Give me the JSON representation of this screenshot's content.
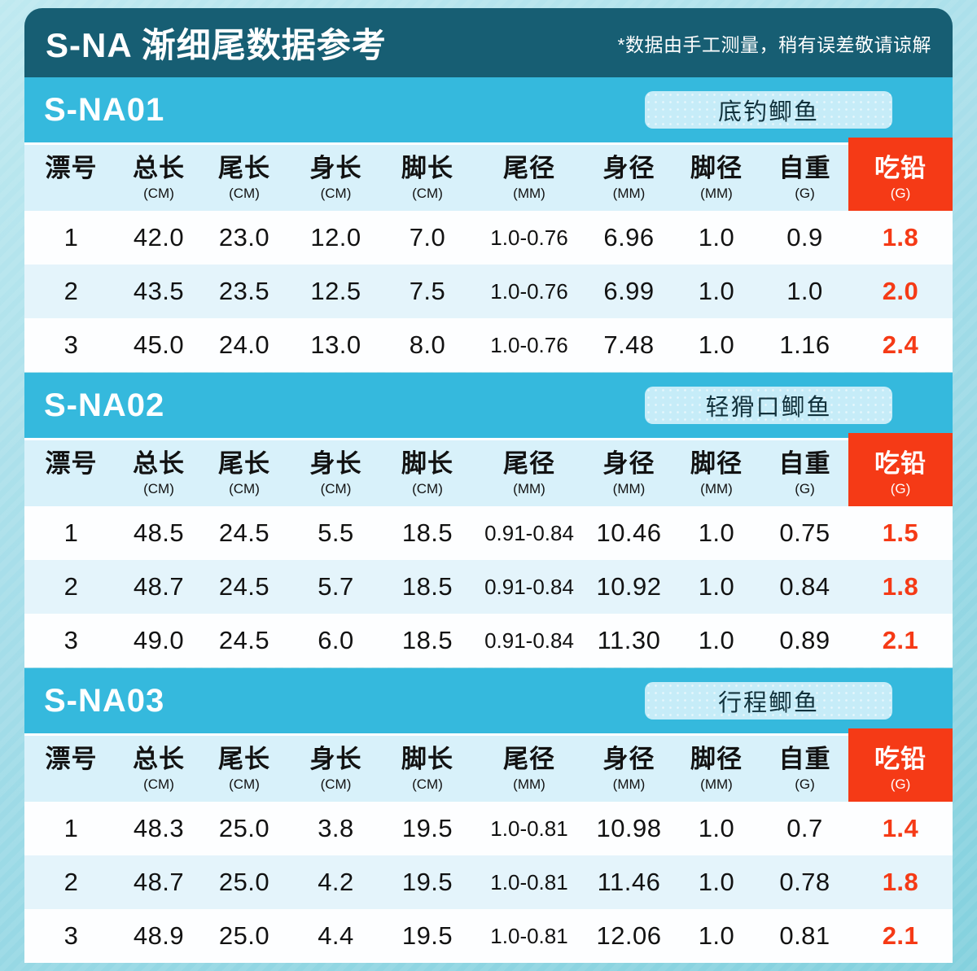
{
  "page": {
    "title": "S-NA 渐细尾数据参考",
    "note": "*数据由手工测量，稍有误差敬请谅解"
  },
  "table_header": {
    "columns": [
      {
        "label": "漂号",
        "unit": ""
      },
      {
        "label": "总长",
        "unit": "(CM)"
      },
      {
        "label": "尾长",
        "unit": "(CM)"
      },
      {
        "label": "身长",
        "unit": "(CM)"
      },
      {
        "label": "脚长",
        "unit": "(CM)"
      },
      {
        "label": "尾径",
        "unit": "(MM)"
      },
      {
        "label": "身径",
        "unit": "(MM)"
      },
      {
        "label": "脚径",
        "unit": "(MM)"
      },
      {
        "label": "自重",
        "unit": "(G)"
      },
      {
        "label": "吃铅",
        "unit": "(G)"
      }
    ]
  },
  "sections": [
    {
      "model": "S-NA01",
      "badge": "底钓鲫鱼",
      "rows": [
        [
          "1",
          "42.0",
          "23.0",
          "12.0",
          "7.0",
          "1.0-0.76",
          "6.96",
          "1.0",
          "0.9",
          "1.8"
        ],
        [
          "2",
          "43.5",
          "23.5",
          "12.5",
          "7.5",
          "1.0-0.76",
          "6.99",
          "1.0",
          "1.0",
          "2.0"
        ],
        [
          "3",
          "45.0",
          "24.0",
          "13.0",
          "8.0",
          "1.0-0.76",
          "7.48",
          "1.0",
          "1.16",
          "2.4"
        ]
      ]
    },
    {
      "model": "S-NA02",
      "badge": "轻猾口鲫鱼",
      "rows": [
        [
          "1",
          "48.5",
          "24.5",
          "5.5",
          "18.5",
          "0.91-0.84",
          "10.46",
          "1.0",
          "0.75",
          "1.5"
        ],
        [
          "2",
          "48.7",
          "24.5",
          "5.7",
          "18.5",
          "0.91-0.84",
          "10.92",
          "1.0",
          "0.84",
          "1.8"
        ],
        [
          "3",
          "49.0",
          "24.5",
          "6.0",
          "18.5",
          "0.91-0.84",
          "11.30",
          "1.0",
          "0.89",
          "2.1"
        ]
      ]
    },
    {
      "model": "S-NA03",
      "badge": "行程鲫鱼",
      "rows": [
        [
          "1",
          "48.3",
          "25.0",
          "3.8",
          "19.5",
          "1.0-0.81",
          "10.98",
          "1.0",
          "0.7",
          "1.4"
        ],
        [
          "2",
          "48.7",
          "25.0",
          "4.2",
          "19.5",
          "1.0-0.81",
          "11.46",
          "1.0",
          "0.78",
          "1.8"
        ],
        [
          "3",
          "48.9",
          "25.0",
          "4.4",
          "19.5",
          "1.0-0.81",
          "12.06",
          "1.0",
          "0.81",
          "2.1"
        ]
      ]
    }
  ],
  "colors": {
    "banner_teal": "#175e73",
    "section_cyan": "#35b9dd",
    "badge_bg": "#c6ecf8",
    "badge_text": "#12323c",
    "thead_bg": "#d8f1fa",
    "row_alt_bg": "#e4f4fb",
    "row_bg": "#fdfeff",
    "red": "#f53a16",
    "ink": "#121212",
    "page_bg": "#a5dde9"
  }
}
